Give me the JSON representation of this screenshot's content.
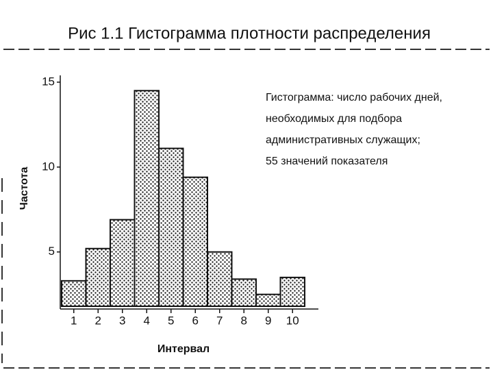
{
  "chart_data": {
    "type": "bar",
    "title": "Рис 1.1   Гистограмма плотности распределения",
    "annotation": [
      "Гистограмма: число рабочих дней,",
      "необходимых для подбора",
      "административных служащих;",
      "55 значений показателя"
    ],
    "y_label": "Частота",
    "x_label": "Интервал",
    "categories": [
      "1",
      "2",
      "3",
      "4",
      "5",
      "6",
      "7",
      "8",
      "9",
      "10"
    ],
    "values": [
      3.3,
      5.2,
      6.9,
      14.5,
      11.1,
      9.4,
      5.0,
      3.4,
      2.5,
      3.5
    ],
    "color": "#111111",
    "ylim": [
      1.8,
      15.4
    ],
    "yticks": [
      5,
      10,
      15
    ]
  }
}
